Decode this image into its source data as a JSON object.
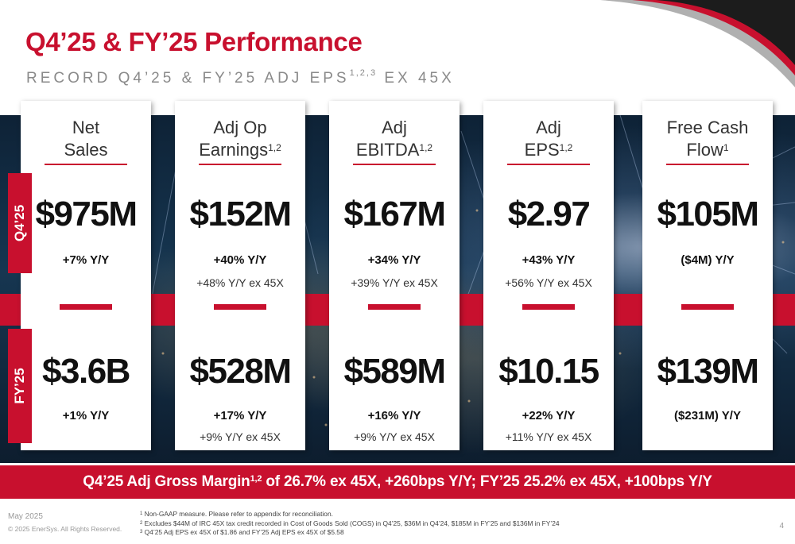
{
  "header": {
    "title": "Q4’25 & FY’25 Performance",
    "subtitle": "RECORD Q4’25 & FY’25 ADJ EPS",
    "subtitle_sup": "1,2,3",
    "subtitle_tail": " EX 45X"
  },
  "period_tabs": {
    "q": "Q4’25",
    "fy": "FY’25"
  },
  "metrics": [
    {
      "line1": "Net",
      "line2": "Sales",
      "sup": "",
      "q_value": "$975M",
      "q_yy": "+7% Y/Y",
      "q_ex": "",
      "fy_value": "$3.6B",
      "fy_yy": "+1% Y/Y",
      "fy_ex": ""
    },
    {
      "line1": "Adj Op",
      "line2": "Earnings",
      "sup": "1,2",
      "q_value": "$152M",
      "q_yy": "+40% Y/Y",
      "q_ex": "+48% Y/Y ex 45X",
      "fy_value": "$528M",
      "fy_yy": "+17% Y/Y",
      "fy_ex": "+9% Y/Y ex 45X"
    },
    {
      "line1": "Adj",
      "line2": "EBITDA",
      "sup": "1,2",
      "q_value": "$167M",
      "q_yy": "+34% Y/Y",
      "q_ex": "+39% Y/Y ex 45X",
      "fy_value": "$589M",
      "fy_yy": "+16% Y/Y",
      "fy_ex": "+9% Y/Y ex 45X"
    },
    {
      "line1": "Adj",
      "line2": "EPS",
      "sup": "1,2",
      "q_value": "$2.97",
      "q_yy": "+43% Y/Y",
      "q_ex": "+56% Y/Y ex 45X",
      "fy_value": "$10.15",
      "fy_yy": "+22% Y/Y",
      "fy_ex": "+11% Y/Y ex 45X"
    },
    {
      "line1": "Free Cash",
      "line2": "Flow",
      "sup": "1",
      "q_value": "$105M",
      "q_yy": "($4M) Y/Y",
      "q_ex": "",
      "fy_value": "$139M",
      "fy_yy": "($231M) Y/Y",
      "fy_ex": ""
    }
  ],
  "margin_band": {
    "pre": "Q4’25 Adj Gross Margin",
    "sup": "1,2",
    "post": " of 26.7% ex 45X, +260bps Y/Y; FY’25 25.2% ex 45X, +100bps Y/Y"
  },
  "footer": {
    "date": "May 2025",
    "copyright": "© 2025 EnerSys. All Rights Reserved.",
    "page": "4",
    "notes": [
      {
        "num": "1",
        "text": "Non-GAAP measure. Please refer to appendix for reconciliation."
      },
      {
        "num": "2",
        "text": "Excludes $44M of IRC 45X tax credit recorded in Cost of Goods Sold (COGS) in Q4’25, $36M in Q4’24, $185M in FY’25 and $136M in FY’24"
      },
      {
        "num": "3",
        "text": "Q4’25 Adj EPS ex 45X of $1.86 and FY’25 Adj EPS ex 45X of $5.58"
      }
    ]
  },
  "colors": {
    "accent": "#c8102e",
    "text_dark": "#111111",
    "muted": "#8a8a8a"
  }
}
